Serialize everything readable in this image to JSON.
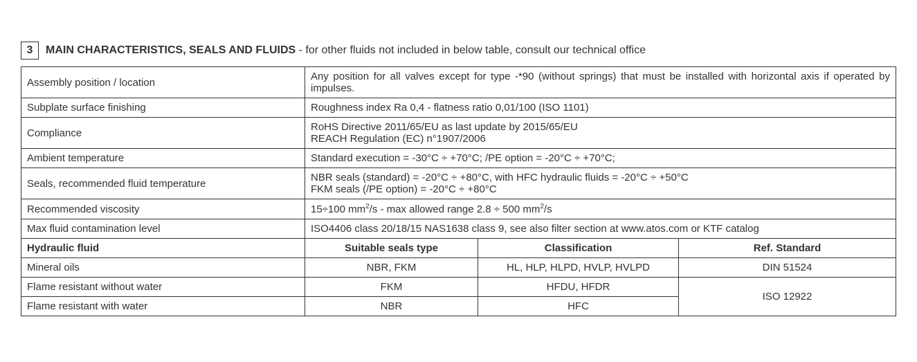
{
  "section": {
    "number": "3",
    "title": "MAIN CHARACTERISTICS, SEALS AND FLUIDS",
    "subtitle": " - for other fluids not included in below table, consult our technical office"
  },
  "rows": [
    {
      "label": "Assembly position / location",
      "value": "Any position for all valves except for type -*90 (without springs) that must be installed with horizontal axis if operated by impulses."
    },
    {
      "label": "Subplate surface finishing",
      "value": "Roughness index Ra 0,4 - flatness ratio 0,01/100 (ISO 1101)"
    },
    {
      "label": "Compliance",
      "value": "RoHS Directive 2011/65/EU as last update by 2015/65/EU\nREACH Regulation (EC) n°1907/2006"
    },
    {
      "label": "Ambient temperature",
      "value": "Standard execution = -30°C ÷ +70°C;  /PE option = -20°C ÷ +70°C;"
    },
    {
      "label": "Seals, recommended fluid temperature",
      "value": "NBR seals (standard) = -20°C ÷ +80°C, with HFC hydraulic fluids = -20°C ÷ +50°C\nFKM seals (/PE option) = -20°C ÷ +80°C"
    },
    {
      "label": "Recommended viscosity",
      "value": "15÷100 mm²/s - max allowed range 2.8 ÷ 500 mm²/s"
    },
    {
      "label": "Max fluid contamination level",
      "value": "ISO4406 class 20/18/15 NAS1638 class 9, see also filter section at www.atos.com or KTF catalog"
    }
  ],
  "fluids_header": {
    "c1": "Hydraulic fluid",
    "c2": "Suitable seals type",
    "c3": "Classification",
    "c4": "Ref. Standard"
  },
  "fluids_rows": [
    {
      "c1": "Mineral oils",
      "c2": "NBR, FKM",
      "c3": "HL, HLP, HLPD, HVLP, HVLPD",
      "c4": "DIN 51524"
    },
    {
      "c1": "Flame resistant without water",
      "c2": "FKM",
      "c3": "HFDU, HFDR"
    },
    {
      "c1": "Flame resistant with water",
      "c2": "NBR",
      "c3": "HFC"
    }
  ],
  "fluids_shared_c4": "ISO 12922",
  "colors": {
    "text": "#333333",
    "border": "#333333",
    "background": "#ffffff"
  },
  "font_sizes": {
    "heading": 16,
    "body": 15
  }
}
